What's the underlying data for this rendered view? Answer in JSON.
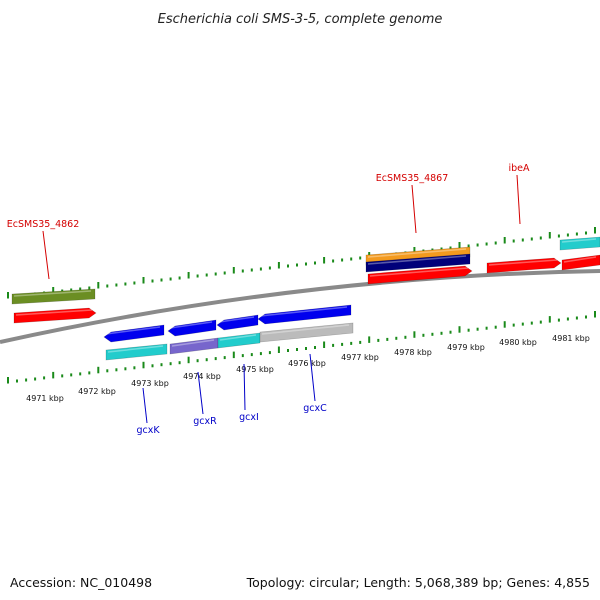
{
  "title": "Escherichia coli SMS-3-5, complete genome",
  "footer": {
    "accession": "Accession: NC_010498",
    "topology": "Topology: circular; Length: 5,068,389 bp; Genes: 4,855"
  },
  "colors": {
    "backbone": "#8a8a8a",
    "tick": "#1a8a1a",
    "red_gene": "#ff0000",
    "blue_gene": "#0000ee",
    "cyan_gene": "#22cccc",
    "purple_gene": "#7766cc",
    "grey_gene": "#bbbbbb",
    "olive_gene": "#6b8e23",
    "orange_gene": "#f39a1e",
    "navy_gene": "#00007a",
    "red_label": "#d40000",
    "blue_label": "#0000c8"
  },
  "scale_labels": [
    "4971 kbp",
    "4972 kbp",
    "4973 kbp",
    "4974 kbp",
    "4975 kbp",
    "4976 kbp",
    "4977 kbp",
    "4978 kbp",
    "4979 kbp",
    "4980 kbp",
    "4981 kbp"
  ],
  "upper_labels": [
    "EcSMS35_4862",
    "EcSMS35_4867",
    "ibeA"
  ],
  "lower_labels": [
    "gcxK",
    "gcxR",
    "gcxI",
    "gcxC"
  ]
}
